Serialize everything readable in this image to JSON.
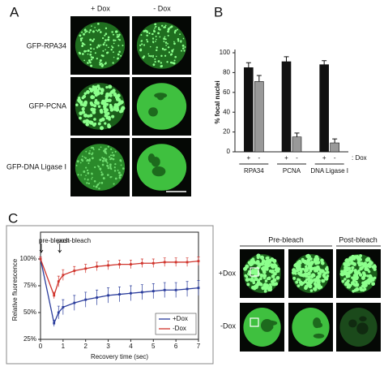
{
  "panels": {
    "a": {
      "label": "A",
      "columns": [
        "+ Dox",
        "- Dox"
      ],
      "rows": [
        "GFP-RPA34",
        "GFP-PCNA",
        "GFP-DNA Ligase I"
      ]
    },
    "b": {
      "label": "B"
    },
    "c": {
      "label": "C",
      "groups": [
        "Pre-bleach",
        "Post-bleach"
      ],
      "rows": [
        "+Dox",
        "-Dox"
      ]
    }
  },
  "chart_data": [
    {
      "type": "bar",
      "y_label": "% focal nuclei",
      "categories": [
        "RPA34",
        "PCNA",
        "DNA Ligase I"
      ],
      "series": [
        {
          "name": "+",
          "color": "#111111",
          "values": [
            85,
            91,
            88
          ],
          "errors": [
            5,
            5,
            4
          ]
        },
        {
          "name": "-",
          "color": "#999999",
          "values": [
            71,
            15,
            9
          ],
          "errors": [
            6,
            4,
            4
          ]
        }
      ],
      "annotation": ": Dox",
      "ylim": [
        0,
        100
      ],
      "yticks": [
        0,
        20,
        40,
        60,
        80,
        100
      ]
    },
    {
      "type": "line",
      "x_label": "Recovery time (sec)",
      "y_label": "Relative fluorescence",
      "annotations": [
        "pre-bleach",
        "post-bleach"
      ],
      "x": [
        0,
        0.6,
        0.8,
        1,
        1.5,
        2,
        2.5,
        3,
        3.5,
        4,
        4.5,
        5,
        5.5,
        6,
        6.5,
        7
      ],
      "series": [
        {
          "name": "+Dox",
          "color": "#2a3c9c",
          "values": [
            100,
            40,
            50,
            55,
            59,
            62,
            64,
            66,
            67,
            68,
            69,
            70,
            71,
            71,
            72,
            73
          ],
          "errors": [
            2,
            3,
            6,
            7,
            7,
            7,
            7,
            7,
            7,
            7,
            7,
            7,
            7,
            7,
            7,
            7
          ]
        },
        {
          "name": "-Dox",
          "color": "#d0342c",
          "values": [
            100,
            66,
            79,
            85,
            89,
            91,
            93,
            94,
            95,
            95,
            96,
            96,
            97,
            97,
            97,
            98
          ],
          "errors": [
            2,
            3,
            5,
            5,
            4,
            4,
            4,
            4,
            4,
            4,
            4,
            4,
            4,
            4,
            4,
            4
          ]
        }
      ],
      "xlim": [
        0,
        7
      ],
      "xticks": [
        0,
        1,
        2,
        3,
        4,
        5,
        6,
        7
      ],
      "ylim": [
        25,
        125
      ],
      "yticks": [
        {
          "value": 25,
          "label": "25%"
        },
        {
          "value": 50,
          "label": "50%"
        },
        {
          "value": 75,
          "label": "75%"
        },
        {
          "value": 100,
          "label": "100%"
        }
      ],
      "legend": "lower-right"
    }
  ]
}
